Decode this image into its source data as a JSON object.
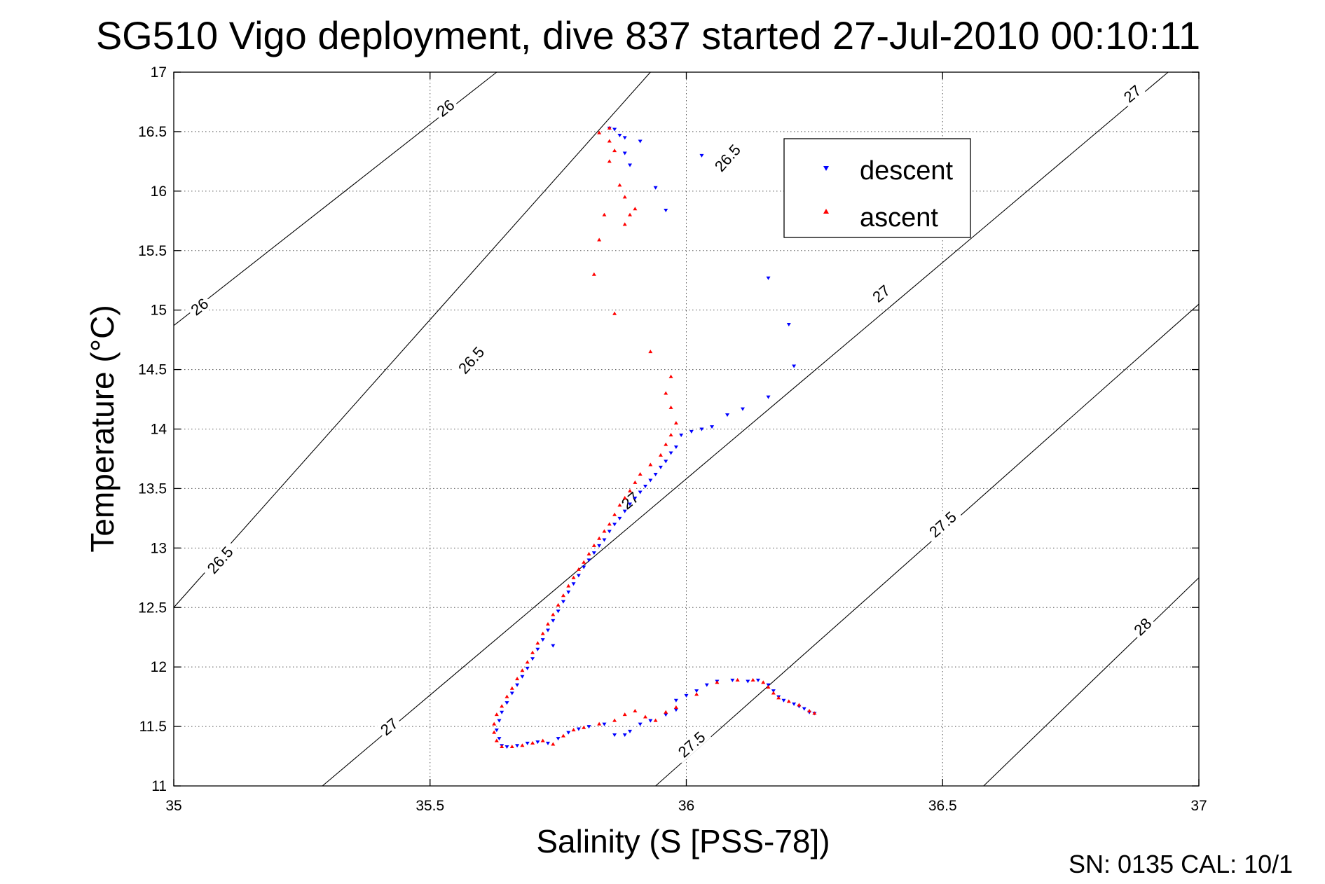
{
  "chart_data": {
    "type": "scatter",
    "title": "SG510 Vigo deployment, dive 837 started 27-Jul-2010 00:10:11",
    "xlabel": "Salinity (S [PSS-78])",
    "ylabel": "Temperature (°C)",
    "xlim": [
      35,
      37
    ],
    "ylim": [
      11,
      17
    ],
    "xticks": [
      "35",
      "35.5",
      "36",
      "36.5",
      "37"
    ],
    "yticks": [
      "11",
      "11.5",
      "12",
      "12.5",
      "13",
      "13.5",
      "14",
      "14.5",
      "15",
      "15.5",
      "16",
      "16.5",
      "17"
    ],
    "grid": true,
    "legend_position": "top-right",
    "footer": "SN: 0135  CAL: 10/1",
    "series": [
      {
        "name": "descent",
        "color": "#0000ff",
        "marker": "triangle-down",
        "points": [
          [
            35.85,
            16.53
          ],
          [
            35.86,
            16.52
          ],
          [
            35.87,
            16.47
          ],
          [
            35.88,
            16.45
          ],
          [
            35.91,
            16.42
          ],
          [
            35.88,
            16.32
          ],
          [
            35.89,
            16.22
          ],
          [
            35.94,
            16.03
          ],
          [
            35.96,
            15.84
          ],
          [
            36.03,
            16.3
          ],
          [
            36.16,
            15.27
          ],
          [
            36.2,
            14.88
          ],
          [
            36.21,
            14.53
          ],
          [
            36.16,
            14.27
          ],
          [
            36.11,
            14.17
          ],
          [
            36.08,
            14.12
          ],
          [
            36.05,
            14.02
          ],
          [
            36.03,
            14.0
          ],
          [
            36.01,
            13.98
          ],
          [
            35.99,
            13.95
          ],
          [
            35.98,
            13.85
          ],
          [
            35.97,
            13.8
          ],
          [
            35.96,
            13.73
          ],
          [
            35.95,
            13.68
          ],
          [
            35.94,
            13.62
          ],
          [
            35.93,
            13.57
          ],
          [
            35.92,
            13.52
          ],
          [
            35.91,
            13.47
          ],
          [
            35.9,
            13.42
          ],
          [
            35.89,
            13.37
          ],
          [
            35.88,
            13.31
          ],
          [
            35.87,
            13.25
          ],
          [
            35.86,
            13.2
          ],
          [
            35.85,
            13.14
          ],
          [
            35.84,
            13.07
          ],
          [
            35.83,
            13.02
          ],
          [
            35.82,
            12.96
          ],
          [
            35.81,
            12.9
          ],
          [
            35.8,
            12.84
          ],
          [
            35.79,
            12.77
          ],
          [
            35.78,
            12.7
          ],
          [
            35.77,
            12.63
          ],
          [
            35.76,
            12.55
          ],
          [
            35.75,
            12.47
          ],
          [
            35.74,
            12.39
          ],
          [
            35.73,
            12.31
          ],
          [
            35.72,
            12.23
          ],
          [
            35.74,
            12.18
          ],
          [
            35.71,
            12.15
          ],
          [
            35.7,
            12.07
          ],
          [
            35.69,
            11.99
          ],
          [
            35.68,
            11.92
          ],
          [
            35.67,
            11.85
          ],
          [
            35.66,
            11.78
          ],
          [
            35.65,
            11.7
          ],
          [
            35.64,
            11.62
          ],
          [
            35.635,
            11.55
          ],
          [
            35.63,
            11.47
          ],
          [
            35.635,
            11.4
          ],
          [
            35.64,
            11.34
          ],
          [
            35.65,
            11.33
          ],
          [
            35.67,
            11.34
          ],
          [
            35.69,
            11.36
          ],
          [
            35.71,
            11.37
          ],
          [
            35.73,
            11.36
          ],
          [
            35.75,
            11.4
          ],
          [
            35.77,
            11.45
          ],
          [
            35.79,
            11.48
          ],
          [
            35.81,
            11.5
          ],
          [
            35.84,
            11.52
          ],
          [
            35.86,
            11.43
          ],
          [
            35.88,
            11.43
          ],
          [
            35.89,
            11.46
          ],
          [
            35.91,
            11.52
          ],
          [
            35.93,
            11.55
          ],
          [
            35.96,
            11.6
          ],
          [
            35.98,
            11.64
          ],
          [
            35.98,
            11.72
          ],
          [
            36.0,
            11.76
          ],
          [
            36.02,
            11.8
          ],
          [
            36.04,
            11.85
          ],
          [
            36.06,
            11.88
          ],
          [
            36.09,
            11.89
          ],
          [
            36.12,
            11.88
          ],
          [
            36.14,
            11.89
          ],
          [
            36.16,
            11.85
          ],
          [
            36.17,
            11.8
          ],
          [
            36.18,
            11.75
          ],
          [
            36.19,
            11.72
          ],
          [
            36.21,
            11.69
          ],
          [
            36.22,
            11.67
          ],
          [
            36.23,
            11.65
          ],
          [
            36.24,
            11.62
          ],
          [
            36.25,
            11.61
          ]
        ]
      },
      {
        "name": "ascent",
        "color": "#ff0000",
        "marker": "triangle-up",
        "points": [
          [
            35.83,
            16.49
          ],
          [
            35.85,
            16.53
          ],
          [
            35.85,
            16.42
          ],
          [
            35.86,
            16.34
          ],
          [
            35.85,
            16.25
          ],
          [
            35.87,
            16.05
          ],
          [
            35.88,
            15.95
          ],
          [
            35.9,
            15.85
          ],
          [
            35.89,
            15.8
          ],
          [
            35.88,
            15.72
          ],
          [
            35.84,
            15.8
          ],
          [
            35.83,
            15.59
          ],
          [
            35.82,
            15.3
          ],
          [
            35.86,
            14.97
          ],
          [
            35.93,
            14.65
          ],
          [
            35.97,
            14.44
          ],
          [
            35.96,
            14.3
          ],
          [
            35.97,
            14.18
          ],
          [
            35.98,
            14.05
          ],
          [
            35.97,
            13.95
          ],
          [
            35.96,
            13.87
          ],
          [
            35.95,
            13.78
          ],
          [
            35.93,
            13.7
          ],
          [
            35.91,
            13.62
          ],
          [
            35.9,
            13.55
          ],
          [
            35.89,
            13.48
          ],
          [
            35.88,
            13.42
          ],
          [
            35.87,
            13.36
          ],
          [
            35.86,
            13.28
          ],
          [
            35.85,
            13.2
          ],
          [
            35.84,
            13.14
          ],
          [
            35.83,
            13.08
          ],
          [
            35.82,
            13.02
          ],
          [
            35.81,
            12.95
          ],
          [
            35.8,
            12.88
          ],
          [
            35.79,
            12.82
          ],
          [
            35.78,
            12.75
          ],
          [
            35.77,
            12.68
          ],
          [
            35.76,
            12.6
          ],
          [
            35.75,
            12.52
          ],
          [
            35.74,
            12.44
          ],
          [
            35.73,
            12.36
          ],
          [
            35.72,
            12.28
          ],
          [
            35.71,
            12.2
          ],
          [
            35.7,
            12.12
          ],
          [
            35.69,
            12.04
          ],
          [
            35.68,
            11.97
          ],
          [
            35.67,
            11.9
          ],
          [
            35.66,
            11.82
          ],
          [
            35.65,
            11.75
          ],
          [
            35.64,
            11.67
          ],
          [
            35.63,
            11.6
          ],
          [
            35.625,
            11.52
          ],
          [
            35.625,
            11.45
          ],
          [
            35.63,
            11.38
          ],
          [
            35.64,
            11.33
          ],
          [
            35.66,
            11.33
          ],
          [
            35.68,
            11.34
          ],
          [
            35.7,
            11.36
          ],
          [
            35.72,
            11.38
          ],
          [
            35.74,
            11.35
          ],
          [
            35.76,
            11.42
          ],
          [
            35.78,
            11.47
          ],
          [
            35.8,
            11.49
          ],
          [
            35.83,
            11.52
          ],
          [
            35.86,
            11.55
          ],
          [
            35.88,
            11.6
          ],
          [
            35.9,
            11.63
          ],
          [
            35.92,
            11.58
          ],
          [
            35.94,
            11.55
          ],
          [
            35.96,
            11.62
          ],
          [
            35.98,
            11.66
          ],
          [
            36.02,
            11.77
          ],
          [
            36.06,
            11.87
          ],
          [
            36.1,
            11.89
          ],
          [
            36.13,
            11.89
          ],
          [
            36.15,
            11.87
          ],
          [
            36.16,
            11.83
          ],
          [
            36.17,
            11.78
          ],
          [
            36.18,
            11.74
          ],
          [
            36.2,
            11.71
          ],
          [
            36.22,
            11.68
          ],
          [
            36.24,
            11.63
          ],
          [
            36.25,
            11.61
          ]
        ]
      }
    ],
    "contours": [
      {
        "label": "26",
        "points": [
          [
            35,
            14.87
          ],
          [
            35.63,
            17.0
          ]
        ],
        "labels_at": [
          [
            35.53,
            16.7
          ],
          [
            35.05,
            15.03
          ]
        ]
      },
      {
        "label": "26.5",
        "points": [
          [
            35,
            12.5
          ],
          [
            35.93,
            17.0
          ]
        ],
        "labels_at": [
          [
            36.08,
            16.28
          ],
          [
            35.58,
            14.58
          ],
          [
            35.09,
            12.9
          ]
        ]
      },
      {
        "label": "27",
        "points": [
          [
            35.29,
            11.0
          ],
          [
            36.94,
            17.0
          ]
        ],
        "labels_at": [
          [
            36.87,
            16.82
          ],
          [
            36.38,
            15.14
          ],
          [
            35.89,
            13.4
          ],
          [
            35.42,
            11.5
          ]
        ]
      },
      {
        "label": "27.5",
        "points": [
          [
            35.94,
            11.0
          ],
          [
            37.0,
            15.05
          ]
        ],
        "labels_at": [
          [
            36.5,
            13.2
          ],
          [
            36.01,
            11.35
          ]
        ]
      },
      {
        "label": "28",
        "points": [
          [
            36.58,
            11.0
          ],
          [
            37.0,
            12.75
          ]
        ],
        "labels_at": [
          [
            36.89,
            12.34
          ]
        ]
      }
    ]
  }
}
